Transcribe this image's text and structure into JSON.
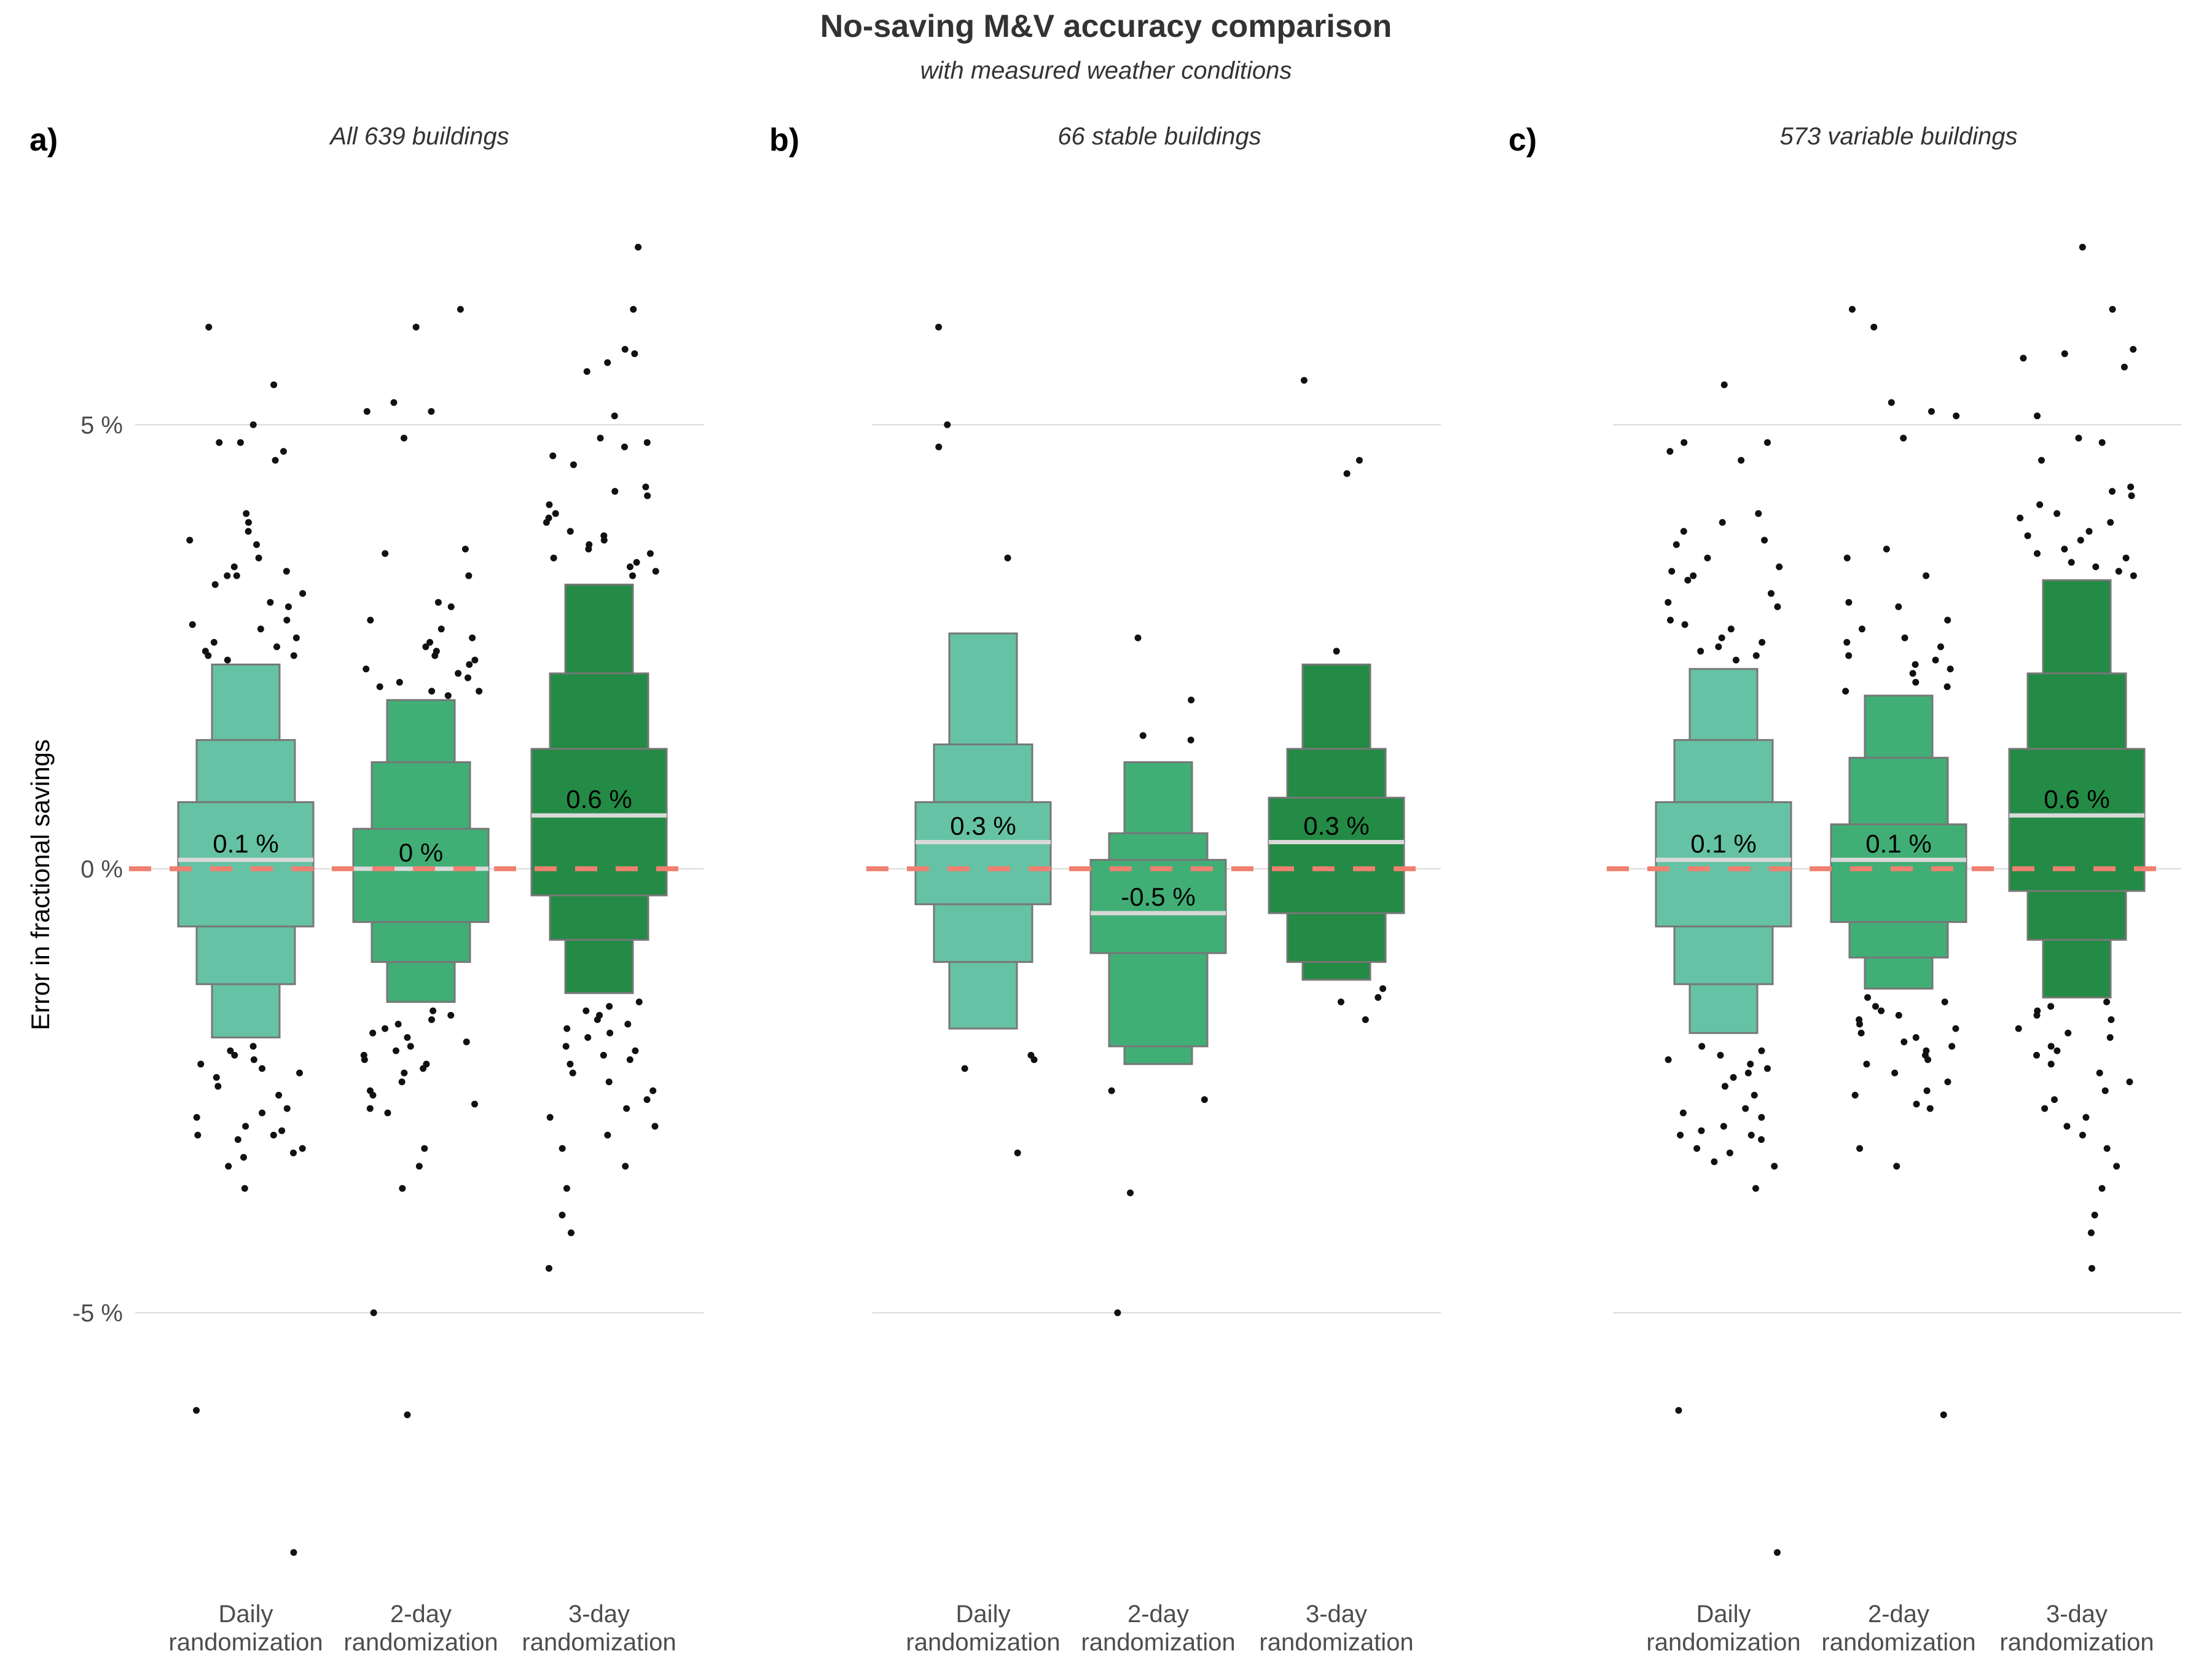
{
  "title": "No-saving M&V accuracy comparison",
  "subtitle": "with measured weather conditions",
  "y_axis_label": "Error in fractional savings",
  "colors": {
    "daily": "#66c2a4",
    "two_day": "#41ae76",
    "three_day": "#238b45",
    "box_border": "#777777",
    "median_line": "#d9d9d9",
    "reference_line": "#f08070",
    "points": "#111111",
    "gridline": "#d9d9d9"
  },
  "chart_data": [
    {
      "type": "letter-value boxplot",
      "tag": "a)",
      "facet_title": "All 639 buildings",
      "categories": [
        "Daily\nrandomization",
        "2-day\nrandomization",
        "3-day\nrandomization"
      ],
      "ylabel": "Error in fractional savings",
      "yticks": [
        "5 %",
        "0 %",
        "-5 %"
      ],
      "ylim": [
        -8,
        7.5
      ],
      "reference_line": 0,
      "series": [
        {
          "category": "Daily randomization",
          "median": 0.1,
          "median_label": "0.1 %",
          "boxes": [
            [
              -0.65,
              0.75
            ],
            [
              -1.3,
              1.45
            ],
            [
              -1.9,
              2.3
            ]
          ],
          "outliers_high": [
            6.1,
            5.45,
            5.0,
            4.8,
            4.8,
            4.7,
            4.6,
            4.0,
            3.9,
            3.8,
            3.7,
            3.65,
            3.5,
            3.4,
            3.35,
            3.3,
            3.3,
            3.2,
            3.1,
            3.0,
            2.95,
            2.8,
            2.75,
            2.7,
            2.6,
            2.55,
            2.5,
            2.45,
            2.4,
            2.4,
            2.35
          ],
          "outliers_low": [
            -2.0,
            -2.05,
            -2.1,
            -2.15,
            -2.2,
            -2.25,
            -2.3,
            -2.35,
            -2.45,
            -2.55,
            -2.7,
            -2.75,
            -2.8,
            -2.9,
            -2.95,
            -3.0,
            -3.0,
            -3.05,
            -3.15,
            -3.2,
            -3.25,
            -3.35,
            -3.6,
            -6.1,
            -7.7
          ]
        },
        {
          "category": "2-day randomization",
          "median": 0.0,
          "median_label": "0 %",
          "boxes": [
            [
              -0.6,
              0.45
            ],
            [
              -1.05,
              1.2
            ],
            [
              -1.5,
              1.9
            ]
          ],
          "outliers_high": [
            6.3,
            6.1,
            5.25,
            5.15,
            5.15,
            4.85,
            3.6,
            3.55,
            3.3,
            3.0,
            2.95,
            2.8,
            2.7,
            2.6,
            2.55,
            2.5,
            2.45,
            2.4,
            2.35,
            2.3,
            2.25,
            2.2,
            2.15,
            2.1,
            2.05,
            2.0,
            2.0,
            1.95
          ],
          "outliers_low": [
            -1.6,
            -1.65,
            -1.7,
            -1.75,
            -1.8,
            -1.85,
            -1.9,
            -1.95,
            -2.0,
            -2.05,
            -2.1,
            -2.15,
            -2.2,
            -2.25,
            -2.3,
            -2.4,
            -2.5,
            -2.55,
            -2.65,
            -2.7,
            -2.75,
            -3.15,
            -3.35,
            -3.6,
            -5.0,
            -6.15
          ]
        },
        {
          "category": "3-day randomization",
          "median": 0.6,
          "median_label": "0.6 %",
          "boxes": [
            [
              -0.3,
              1.35
            ],
            [
              -0.8,
              2.2
            ],
            [
              -1.4,
              3.2
            ]
          ],
          "outliers_high": [
            7.0,
            6.3,
            5.85,
            5.8,
            5.7,
            5.6,
            5.1,
            4.85,
            4.8,
            4.75,
            4.65,
            4.55,
            4.3,
            4.25,
            4.2,
            4.1,
            4.0,
            3.95,
            3.9,
            3.8,
            3.75,
            3.7,
            3.65,
            3.6,
            3.55,
            3.5,
            3.45,
            3.4,
            3.35,
            3.3
          ],
          "outliers_low": [
            -1.5,
            -1.55,
            -1.6,
            -1.65,
            -1.7,
            -1.75,
            -1.8,
            -1.85,
            -1.9,
            -2.0,
            -2.05,
            -2.1,
            -2.15,
            -2.2,
            -2.3,
            -2.4,
            -2.5,
            -2.6,
            -2.7,
            -2.8,
            -2.9,
            -3.0,
            -3.15,
            -3.35,
            -3.6,
            -3.9,
            -4.1,
            -4.5
          ]
        }
      ]
    },
    {
      "type": "letter-value boxplot",
      "tag": "b)",
      "facet_title": "66 stable buildings",
      "categories": [
        "Daily\nrandomization",
        "2-day\nrandomization",
        "3-day\nrandomization"
      ],
      "ylim": [
        -8,
        7.5
      ],
      "reference_line": 0,
      "series": [
        {
          "category": "Daily randomization",
          "median": 0.3,
          "median_label": "0.3 %",
          "boxes": [
            [
              -0.4,
              0.75
            ],
            [
              -1.05,
              1.4
            ],
            [
              -1.8,
              2.65
            ]
          ],
          "outliers_high": [
            6.1,
            5.0,
            4.75,
            3.5
          ],
          "outliers_low": [
            -2.1,
            -2.15,
            -2.25,
            -3.2
          ]
        },
        {
          "category": "2-day randomization",
          "median": -0.5,
          "median_label": "-0.5 %",
          "boxes": [
            [
              -0.95,
              0.1
            ],
            [
              -2.0,
              0.4
            ],
            [
              -2.2,
              1.2
            ]
          ],
          "outliers_high": [
            2.6,
            1.9,
            1.5,
            1.45
          ],
          "outliers_low": [
            -2.5,
            -2.6,
            -3.65,
            -5.0
          ]
        },
        {
          "category": "3-day randomization",
          "median": 0.3,
          "median_label": "0.3 %",
          "boxes": [
            [
              -0.5,
              0.8
            ],
            [
              -1.05,
              1.35
            ],
            [
              -1.25,
              2.3
            ]
          ],
          "outliers_high": [
            5.5,
            4.6,
            4.45,
            2.45
          ],
          "outliers_low": [
            -1.35,
            -1.45,
            -1.5,
            -1.7
          ]
        }
      ]
    },
    {
      "type": "letter-value boxplot",
      "tag": "c)",
      "facet_title": "573 variable buildings",
      "categories": [
        "Daily\nrandomization",
        "2-day\nrandomization",
        "3-day\nrandomization"
      ],
      "ylim": [
        -8,
        7.5
      ],
      "reference_line": 0,
      "series": [
        {
          "category": "Daily randomization",
          "median": 0.1,
          "median_label": "0.1 %",
          "boxes": [
            [
              -0.65,
              0.75
            ],
            [
              -1.3,
              1.45
            ],
            [
              -1.85,
              2.25
            ]
          ],
          "outliers_high": [
            5.45,
            4.8,
            4.8,
            4.7,
            4.6,
            4.0,
            3.9,
            3.8,
            3.7,
            3.65,
            3.5,
            3.4,
            3.35,
            3.3,
            3.25,
            3.1,
            3.0,
            2.95,
            2.8,
            2.75,
            2.7,
            2.6,
            2.55,
            2.5,
            2.45,
            2.4,
            2.35
          ],
          "outliers_low": [
            -2.0,
            -2.05,
            -2.1,
            -2.15,
            -2.2,
            -2.25,
            -2.3,
            -2.35,
            -2.45,
            -2.55,
            -2.7,
            -2.75,
            -2.8,
            -2.9,
            -2.95,
            -3.0,
            -3.0,
            -3.05,
            -3.15,
            -3.2,
            -3.3,
            -3.35,
            -3.6,
            -6.1,
            -7.7
          ]
        },
        {
          "category": "2-day randomization",
          "median": 0.1,
          "median_label": "0.1 %",
          "boxes": [
            [
              -0.6,
              0.5
            ],
            [
              -1.0,
              1.25
            ],
            [
              -1.35,
              1.95
            ]
          ],
          "outliers_high": [
            6.3,
            6.1,
            5.25,
            5.15,
            5.1,
            4.85,
            3.6,
            3.5,
            3.3,
            3.0,
            2.95,
            2.8,
            2.7,
            2.6,
            2.55,
            2.5,
            2.4,
            2.35,
            2.3,
            2.25,
            2.2,
            2.1,
            2.05,
            2.0
          ],
          "outliers_low": [
            -1.45,
            -1.5,
            -1.55,
            -1.6,
            -1.65,
            -1.7,
            -1.75,
            -1.8,
            -1.85,
            -1.9,
            -1.95,
            -2.0,
            -2.05,
            -2.1,
            -2.15,
            -2.2,
            -2.3,
            -2.4,
            -2.5,
            -2.55,
            -2.65,
            -2.7,
            -3.15,
            -3.35,
            -6.15
          ]
        },
        {
          "category": "3-day randomization",
          "median": 0.6,
          "median_label": "0.6 %",
          "boxes": [
            [
              -0.25,
              1.35
            ],
            [
              -0.8,
              2.2
            ],
            [
              -1.45,
              3.25
            ]
          ],
          "outliers_high": [
            7.0,
            6.3,
            5.85,
            5.8,
            5.75,
            5.65,
            5.1,
            4.85,
            4.8,
            4.6,
            4.3,
            4.25,
            4.2,
            4.1,
            4.0,
            3.95,
            3.9,
            3.8,
            3.75,
            3.7,
            3.6,
            3.55,
            3.5,
            3.45,
            3.4,
            3.35,
            3.3
          ],
          "outliers_low": [
            -1.5,
            -1.55,
            -1.6,
            -1.65,
            -1.7,
            -1.8,
            -1.85,
            -1.9,
            -2.0,
            -2.05,
            -2.1,
            -2.2,
            -2.3,
            -2.4,
            -2.5,
            -2.6,
            -2.7,
            -2.8,
            -2.9,
            -3.0,
            -3.15,
            -3.35,
            -3.6,
            -3.9,
            -4.1,
            -4.5
          ]
        }
      ]
    }
  ]
}
